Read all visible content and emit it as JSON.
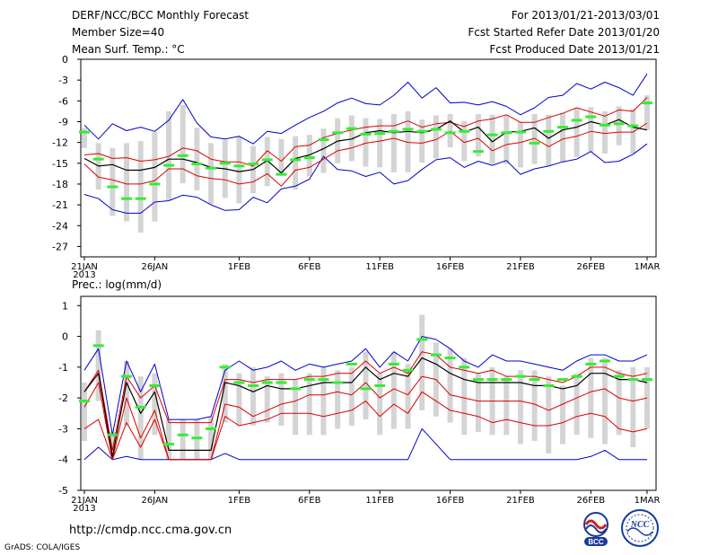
{
  "header": {
    "title": "DERF/NCC/BCC Monthly Forecast",
    "member_size": "Member Size=40",
    "variable": "Mean Surf. Temp.: °C",
    "period": "For 2013/01/21-2013/03/01",
    "refer_date": "Fcst Started Refer Date 2013/01/20",
    "produced_date": "Fcst Produced Date 2013/01/21"
  },
  "footer": {
    "url": "http://cmdp.ncc.cma.gov.cn",
    "credit": "GrADS: COLA/IGES",
    "logo_bcc": "BCC",
    "logo_ncc": "NCC"
  },
  "colors": {
    "envelope": "#0000cc",
    "quartile": "#dd0000",
    "median": "#000000",
    "box": "#d4d4d4",
    "ensemble_mean": "#33ee33"
  },
  "chart_data": [
    {
      "type": "box",
      "title": "Mean Surf. Temp.: °C",
      "x_start": "2013-01-21",
      "days": 40,
      "x_tick_labels": [
        "21JAN",
        "26JAN",
        "1FEB",
        "6FEB",
        "11FEB",
        "16FEB",
        "21FEB",
        "26FEB",
        "1MAR"
      ],
      "x_year_label": "2013",
      "x_tick_day_index": [
        0,
        5,
        11,
        16,
        21,
        26,
        31,
        36,
        40
      ],
      "ylim": [
        -28.5,
        0
      ],
      "yticks": [
        0,
        -3,
        -6,
        -9,
        -12,
        -15,
        -18,
        -21,
        -24,
        -27
      ],
      "series": {
        "max": [
          -9.5,
          -11.5,
          -9.3,
          -10.3,
          -9.8,
          -10.4,
          -8.8,
          -5.8,
          -9.2,
          -11.2,
          -11.5,
          -11.1,
          -12.2,
          -10.4,
          -10.7,
          -9.5,
          -8.4,
          -7.5,
          -6.3,
          -5.6,
          -6.4,
          -6.6,
          -5.2,
          -3.3,
          -5.6,
          -4.1,
          -6.3,
          -6.2,
          -6.6,
          -6.1,
          -6.8,
          -8.0,
          -7.0,
          -5.5,
          -5.2,
          -3.5,
          -4.3,
          -3.3,
          -4.1,
          -5.2,
          -2.1
        ],
        "q3": [
          -13.8,
          -13.6,
          -14.3,
          -14.2,
          -14.7,
          -14.5,
          -14.0,
          -12.8,
          -13.2,
          -14.4,
          -14.8,
          -14.8,
          -15.4,
          -13.2,
          -14.7,
          -12.6,
          -12.4,
          -11.3,
          -10.7,
          -10.2,
          -9.8,
          -9.6,
          -9.6,
          -8.9,
          -9.8,
          -9.3,
          -9.1,
          -9.7,
          -8.9,
          -8.6,
          -8.0,
          -9.1,
          -9.1,
          -8.4,
          -7.8,
          -7.0,
          -7.6,
          -8.2,
          -7.3,
          -7.5,
          -5.5
        ],
        "median": [
          -14.3,
          -15.4,
          -15.2,
          -16.0,
          -16.0,
          -15.6,
          -14.4,
          -14.4,
          -14.9,
          -15.6,
          -15.8,
          -16.2,
          -15.9,
          -14.6,
          -16.4,
          -14.3,
          -13.8,
          -12.9,
          -11.8,
          -11.5,
          -10.6,
          -10.3,
          -10.6,
          -10.4,
          -10.6,
          -10.1,
          -8.9,
          -10.5,
          -9.8,
          -11.9,
          -10.5,
          -10.4,
          -9.9,
          -11.4,
          -10.2,
          -9.8,
          -9.0,
          -9.5,
          -8.7,
          -9.8,
          -10.2
        ],
        "q1": [
          -15.1,
          -17.0,
          -17.4,
          -18.0,
          -18.0,
          -17.5,
          -15.8,
          -15.8,
          -16.8,
          -17.2,
          -17.4,
          -18.0,
          -17.7,
          -16.5,
          -18.3,
          -16.0,
          -15.6,
          -14.4,
          -13.2,
          -12.8,
          -12.1,
          -11.8,
          -11.4,
          -12.0,
          -12.1,
          -11.6,
          -10.4,
          -12.0,
          -11.4,
          -13.2,
          -12.3,
          -12.0,
          -11.4,
          -12.6,
          -11.5,
          -11.1,
          -10.4,
          -10.7,
          -10.5,
          -10.5,
          -9.2
        ],
        "min": [
          -19.5,
          -20.1,
          -21.7,
          -22.2,
          -22.2,
          -20.6,
          -20.4,
          -19.6,
          -19.9,
          -21.0,
          -21.8,
          -21.7,
          -19.9,
          -20.7,
          -18.7,
          -18.3,
          -17.3,
          -14.0,
          -15.9,
          -16.1,
          -16.9,
          -16.3,
          -18.0,
          -17.5,
          -15.9,
          -14.5,
          -14.2,
          -15.6,
          -14.7,
          -15.3,
          -14.6,
          -16.6,
          -15.8,
          -15.4,
          -14.8,
          -14.4,
          -13.3,
          -14.9,
          -14.7,
          -13.7,
          -12.2
        ],
        "box_top": [
          -9.9,
          -12.1,
          -12.8,
          -12.1,
          -11.8,
          -10.5,
          -7.5,
          -6.6,
          -9.9,
          -12.1,
          -11.6,
          -11.2,
          -12.5,
          -11.2,
          -11.5,
          -11.1,
          -10.9,
          -10.0,
          -8.5,
          -8.1,
          -8.5,
          -8.6,
          -7.9,
          -7.5,
          -8.7,
          -8.1,
          -7.9,
          -8.9,
          -7.9,
          -8.0,
          -8.1,
          -9.0,
          -7.9,
          -8.0,
          -7.7,
          -7.0,
          -6.9,
          -7.5,
          -6.8,
          -7.2,
          -5.2
        ],
        "box_bottom": [
          -12.8,
          -18.8,
          -22.6,
          -23.4,
          -25.0,
          -23.4,
          -20.3,
          -17.9,
          -18.9,
          -20.9,
          -20.0,
          -20.8,
          -19.3,
          -18.3,
          -16.8,
          -18.8,
          -16.9,
          -16.4,
          -15.0,
          -14.7,
          -15.5,
          -15.6,
          -16.3,
          -16.3,
          -14.9,
          -14.3,
          -12.7,
          -14.7,
          -14.0,
          -15.1,
          -15.1,
          -15.6,
          -15.1,
          -15.4,
          -14.8,
          -14.1,
          -13.3,
          -13.6,
          -12.4,
          -13.6,
          -10.2
        ],
        "mean": [
          -10.5,
          -14.4,
          -18.4,
          -20.1,
          -20.1,
          -18.0,
          -15.3,
          -13.9,
          -15.1,
          -15.7,
          -15.0,
          -15.4,
          -15.1,
          -14.5,
          -16.6,
          -14.5,
          -14.2,
          -11.6,
          -10.6,
          -10.0,
          -10.8,
          -10.7,
          -10.4,
          -10.1,
          -10.4,
          -10.1,
          -10.6,
          -10.4,
          -13.3,
          -10.9,
          -10.6,
          -10.5,
          -12.1,
          -10.4,
          -9.8,
          -8.8,
          -8.3,
          -9.5,
          -9.3,
          -9.6,
          -6.3
        ]
      }
    },
    {
      "type": "box",
      "title": "Prec.: log(mm/d)",
      "x_start": "2013-01-21",
      "days": 40,
      "x_tick_labels": [
        "21JAN",
        "26JAN",
        "1FEB",
        "6FEB",
        "11FEB",
        "16FEB",
        "21FEB",
        "26FEB",
        "1MAR"
      ],
      "x_year_label": "2013",
      "x_tick_day_index": [
        0,
        5,
        11,
        16,
        21,
        26,
        31,
        36,
        40
      ],
      "ylim": [
        -5,
        1.3
      ],
      "yticks": [
        1,
        0,
        -1,
        -2,
        -3,
        -4,
        -5
      ],
      "series": {
        "max": [
          -1.1,
          -0.4,
          -3.2,
          -0.8,
          -1.8,
          -0.9,
          -2.7,
          -2.7,
          -2.7,
          -2.6,
          -1.1,
          -0.8,
          -1.1,
          -1.0,
          -0.8,
          -1.1,
          -0.9,
          -1.0,
          -0.9,
          -0.8,
          -0.4,
          -1.0,
          -0.5,
          -0.8,
          0.0,
          -0.1,
          -0.4,
          -0.8,
          -1.0,
          -0.6,
          -0.8,
          -0.8,
          -0.9,
          -1.0,
          -1.1,
          -0.8,
          -0.6,
          -0.6,
          -0.8,
          -0.8,
          -0.6
        ],
        "q3": [
          -1.8,
          -1.1,
          -3.7,
          -1.3,
          -2.0,
          -1.6,
          -2.8,
          -2.8,
          -2.8,
          -2.8,
          -1.4,
          -1.4,
          -1.5,
          -1.4,
          -1.4,
          -1.4,
          -1.3,
          -1.3,
          -1.2,
          -1.2,
          -0.8,
          -1.2,
          -1.0,
          -1.2,
          -0.5,
          -0.6,
          -1.0,
          -1.1,
          -1.2,
          -1.1,
          -1.3,
          -1.3,
          -1.3,
          -1.4,
          -1.5,
          -1.3,
          -1.0,
          -1.0,
          -1.2,
          -1.3,
          -1.2
        ],
        "median": [
          -1.8,
          -1.2,
          -3.9,
          -1.5,
          -2.5,
          -1.8,
          -3.7,
          -3.7,
          -3.7,
          -3.7,
          -1.5,
          -1.6,
          -1.8,
          -1.6,
          -1.7,
          -1.7,
          -1.6,
          -1.5,
          -1.5,
          -1.5,
          -1.0,
          -1.4,
          -1.2,
          -1.3,
          -0.7,
          -0.9,
          -1.2,
          -1.4,
          -1.5,
          -1.5,
          -1.5,
          -1.5,
          -1.6,
          -1.6,
          -1.7,
          -1.6,
          -1.2,
          -1.2,
          -1.4,
          -1.4,
          -1.5
        ],
        "q1": [
          -2.3,
          -1.5,
          -4.0,
          -2.0,
          -3.3,
          -2.4,
          -4.0,
          -4.0,
          -4.0,
          -4.0,
          -2.2,
          -2.3,
          -2.6,
          -2.4,
          -2.2,
          -2.1,
          -1.9,
          -1.9,
          -1.8,
          -1.9,
          -1.5,
          -2.0,
          -1.7,
          -1.9,
          -1.3,
          -1.4,
          -1.9,
          -2.0,
          -2.1,
          -2.1,
          -2.1,
          -2.1,
          -2.2,
          -2.4,
          -2.2,
          -2.0,
          -1.8,
          -1.7,
          -2.0,
          -2.1,
          -2.0
        ],
        "min": [
          -3.0,
          -2.7,
          -4.0,
          -2.8,
          -3.6,
          -2.7,
          -4.0,
          -4.0,
          -4.0,
          -4.0,
          -2.6,
          -2.9,
          -2.8,
          -2.7,
          -2.5,
          -2.5,
          -2.5,
          -2.6,
          -2.5,
          -2.4,
          -2.1,
          -2.6,
          -2.2,
          -2.5,
          -1.8,
          -2.1,
          -2.4,
          -2.5,
          -2.6,
          -2.8,
          -2.7,
          -2.8,
          -2.9,
          -2.9,
          -2.8,
          -2.6,
          -2.5,
          -2.6,
          -3.0,
          -3.1,
          -3.0
        ],
        "envelope_low": [
          -4.0,
          -3.6,
          -4.0,
          -3.9,
          -4.0,
          -4.0,
          -4.0,
          -4.0,
          -4.0,
          -4.0,
          -3.8,
          -4.0,
          -4.0,
          -4.0,
          -4.0,
          -4.0,
          -4.0,
          -4.0,
          -4.0,
          -4.0,
          -4.0,
          -4.0,
          -4.0,
          -4.0,
          -3.0,
          -3.5,
          -4.0,
          -4.0,
          -4.0,
          -4.0,
          -4.0,
          -4.0,
          -4.0,
          -4.0,
          -4.0,
          -4.0,
          -3.9,
          -3.7,
          -4.0,
          -4.0,
          -4.0
        ],
        "box_top": [
          -1.5,
          0.2,
          -3.1,
          -0.8,
          -1.3,
          -1.2,
          -2.7,
          -2.7,
          -2.7,
          -2.6,
          -0.9,
          -1.2,
          -1.0,
          -1.3,
          -1.2,
          -1.4,
          -1.2,
          -1.0,
          -1.1,
          -1.0,
          -0.5,
          -1.2,
          -0.5,
          -0.9,
          0.7,
          -0.2,
          -0.4,
          -0.7,
          -1.2,
          -1.0,
          -1.3,
          -1.1,
          -1.1,
          -1.3,
          -1.6,
          -1.2,
          -0.7,
          -0.7,
          -1.1,
          -1.0,
          -1.0
        ],
        "box_bottom": [
          -3.4,
          -2.1,
          -3.6,
          -2.9,
          -4.0,
          -3.2,
          -4.0,
          -4.0,
          -4.0,
          -4.0,
          -2.8,
          -2.9,
          -2.9,
          -2.8,
          -2.9,
          -3.2,
          -3.2,
          -3.2,
          -3.0,
          -2.9,
          -2.7,
          -3.2,
          -3.0,
          -3.0,
          -2.4,
          -2.6,
          -2.8,
          -3.2,
          -3.1,
          -3.2,
          -3.2,
          -3.5,
          -3.4,
          -3.8,
          -3.5,
          -3.2,
          -3.3,
          -3.5,
          -3.2,
          -3.6,
          -3.0
        ],
        "mean": [
          -2.1,
          -0.3,
          -3.2,
          -1.3,
          -2.3,
          -1.6,
          -3.5,
          -3.2,
          -3.3,
          -3.0,
          -1.0,
          -1.5,
          -1.6,
          -1.5,
          -1.5,
          -1.7,
          -1.4,
          -1.4,
          -1.5,
          -0.9,
          -1.7,
          -1.6,
          -0.9,
          -1.1,
          -0.1,
          -0.6,
          -0.7,
          -1.0,
          -1.4,
          -1.4,
          -1.4,
          -1.3,
          -1.4,
          -1.6,
          -1.4,
          -1.3,
          -0.9,
          -0.8,
          -1.3,
          -1.4,
          -1.4
        ]
      }
    }
  ]
}
